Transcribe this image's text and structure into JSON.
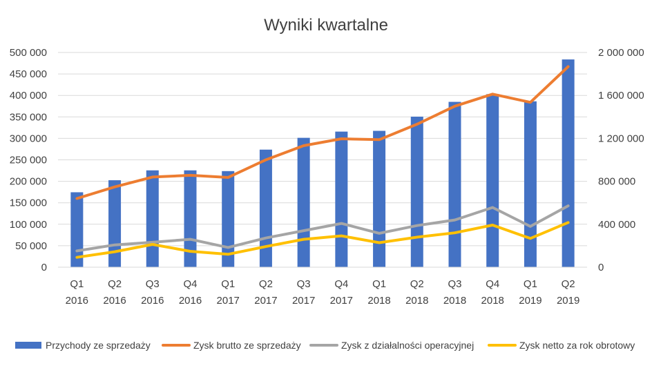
{
  "chart_data": {
    "type": "bar",
    "title": "Wyniki kwartalne",
    "categories": [
      [
        "Q1",
        "2016"
      ],
      [
        "Q2",
        "2016"
      ],
      [
        "Q3",
        "2016"
      ],
      [
        "Q4",
        "2016"
      ],
      [
        "Q1",
        "2017"
      ],
      [
        "Q2",
        "2017"
      ],
      [
        "Q3",
        "2017"
      ],
      [
        "Q4",
        "2017"
      ],
      [
        "Q1",
        "2018"
      ],
      [
        "Q2",
        "2018"
      ],
      [
        "Q3",
        "2018"
      ],
      [
        "Q4",
        "2018"
      ],
      [
        "Q1",
        "2019"
      ],
      [
        "Q2",
        "2019"
      ]
    ],
    "y_left": {
      "ticks": [
        0,
        50000,
        100000,
        150000,
        200000,
        250000,
        300000,
        350000,
        400000,
        450000,
        500000
      ],
      "tick_labels": [
        "0",
        "50 000",
        "100 000",
        "150 000",
        "200 000",
        "250 000",
        "300 000",
        "350 000",
        "400 000",
        "450 000",
        "500 000"
      ],
      "range": [
        0,
        500000
      ]
    },
    "y_right": {
      "ticks": [
        0,
        400000,
        800000,
        1200000,
        1600000,
        2000000
      ],
      "tick_labels": [
        "0",
        "400 000",
        "800 000",
        "1 200 000",
        "1 600 000",
        "2 000 000"
      ],
      "range": [
        0,
        2000000
      ]
    },
    "grid": true,
    "legend_position": "bottom",
    "series": [
      {
        "name": "Przychody ze sprzedaży",
        "kind": "bar",
        "axis": "right",
        "color": "#4472C4",
        "values": [
          698000,
          810000,
          902000,
          902000,
          895000,
          1095000,
          1205000,
          1263000,
          1270000,
          1402000,
          1540000,
          1612000,
          1545000,
          1935000
        ]
      },
      {
        "name": "Zysk brutto ze sprzedaży",
        "kind": "line",
        "axis": "left",
        "color": "#ED7D31",
        "values": [
          160000,
          187000,
          210000,
          214000,
          209000,
          250000,
          283000,
          299000,
          297000,
          333000,
          375000,
          403000,
          384000,
          467000
        ]
      },
      {
        "name": "Zysk z działalności operacyjnej",
        "kind": "line",
        "axis": "left",
        "color": "#A5A5A5",
        "values": [
          38000,
          52000,
          58000,
          65000,
          46000,
          68000,
          85000,
          102000,
          79000,
          97000,
          110000,
          139000,
          95000,
          143000
        ]
      },
      {
        "name": "Zysk netto za rok obrotowy",
        "kind": "line",
        "axis": "left",
        "color": "#FFC000",
        "values": [
          23000,
          36000,
          53000,
          37000,
          30000,
          48000,
          65000,
          73000,
          57000,
          70000,
          80000,
          98000,
          67000,
          104000
        ]
      }
    ]
  }
}
